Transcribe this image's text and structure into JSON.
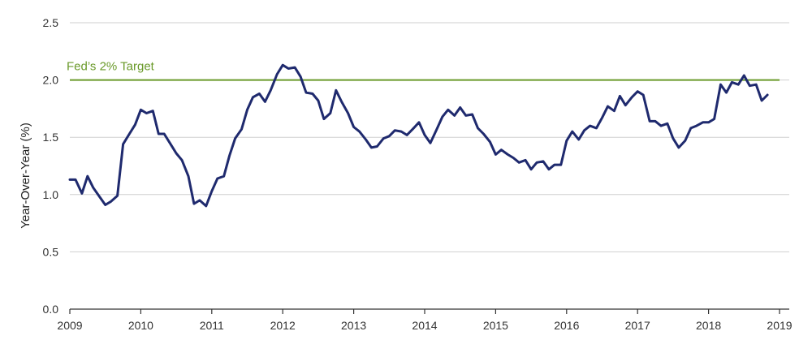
{
  "chart_data": {
    "type": "line",
    "ylabel": "Year-Over-Year (%)",
    "xlabel": "",
    "ylim": [
      0,
      2.5
    ],
    "y_ticks": [
      "0.0",
      "0.5",
      "1.0",
      "1.5",
      "2.0",
      "2.5"
    ],
    "xlim": [
      2009,
      2019
    ],
    "x_ticks": [
      "2009",
      "2010",
      "2011",
      "2012",
      "2013",
      "2014",
      "2015",
      "2016",
      "2017",
      "2018",
      "2019"
    ],
    "grid": "horizontal",
    "reference_line": {
      "label": "Fed’s 2% Target",
      "value": 2.0,
      "color": "#6a9a2a"
    },
    "series": [
      {
        "color": "#1f2a6e",
        "x": [
          2009.0,
          2009.08,
          2009.17,
          2009.25,
          2009.33,
          2009.42,
          2009.5,
          2009.58,
          2009.67,
          2009.75,
          2009.83,
          2009.92,
          2010.0,
          2010.08,
          2010.17,
          2010.25,
          2010.33,
          2010.42,
          2010.5,
          2010.58,
          2010.67,
          2010.75,
          2010.83,
          2010.92,
          2011.0,
          2011.08,
          2011.17,
          2011.25,
          2011.33,
          2011.42,
          2011.5,
          2011.58,
          2011.67,
          2011.75,
          2011.83,
          2011.92,
          2012.0,
          2012.08,
          2012.17,
          2012.25,
          2012.33,
          2012.42,
          2012.5,
          2012.58,
          2012.67,
          2012.75,
          2012.83,
          2012.92,
          2013.0,
          2013.08,
          2013.17,
          2013.25,
          2013.33,
          2013.42,
          2013.5,
          2013.58,
          2013.67,
          2013.75,
          2013.83,
          2013.92,
          2014.0,
          2014.08,
          2014.17,
          2014.25,
          2014.33,
          2014.42,
          2014.5,
          2014.58,
          2014.67,
          2014.75,
          2014.83,
          2014.92,
          2015.0,
          2015.08,
          2015.17,
          2015.25,
          2015.33,
          2015.42,
          2015.5,
          2015.58,
          2015.67,
          2015.75,
          2015.83,
          2015.92,
          2016.0,
          2016.08,
          2016.17,
          2016.25,
          2016.33,
          2016.42,
          2016.5,
          2016.58,
          2016.67,
          2016.75,
          2016.83,
          2016.92,
          2017.0,
          2017.08,
          2017.17,
          2017.25,
          2017.33,
          2017.42,
          2017.5,
          2017.58,
          2017.67,
          2017.75,
          2017.83,
          2017.92,
          2018.0,
          2018.08,
          2018.17,
          2018.25,
          2018.33,
          2018.42,
          2018.5,
          2018.58,
          2018.67,
          2018.75,
          2018.83
        ],
        "y": [
          1.13,
          1.13,
          1.01,
          1.16,
          1.06,
          0.98,
          0.91,
          0.94,
          0.99,
          1.44,
          1.52,
          1.61,
          1.74,
          1.71,
          1.73,
          1.53,
          1.53,
          1.44,
          1.36,
          1.3,
          1.16,
          0.92,
          0.95,
          0.9,
          1.03,
          1.14,
          1.16,
          1.34,
          1.49,
          1.57,
          1.74,
          1.85,
          1.88,
          1.81,
          1.91,
          2.05,
          2.13,
          2.1,
          2.11,
          2.03,
          1.89,
          1.88,
          1.82,
          1.66,
          1.71,
          1.91,
          1.81,
          1.71,
          1.59,
          1.55,
          1.48,
          1.41,
          1.42,
          1.49,
          1.51,
          1.56,
          1.55,
          1.52,
          1.57,
          1.63,
          1.52,
          1.45,
          1.57,
          1.68,
          1.74,
          1.69,
          1.76,
          1.69,
          1.7,
          1.58,
          1.53,
          1.46,
          1.35,
          1.39,
          1.35,
          1.32,
          1.28,
          1.3,
          1.22,
          1.28,
          1.29,
          1.22,
          1.26,
          1.26,
          1.47,
          1.55,
          1.48,
          1.56,
          1.6,
          1.58,
          1.67,
          1.77,
          1.73,
          1.86,
          1.78,
          1.85,
          1.9,
          1.87,
          1.64,
          1.64,
          1.6,
          1.62,
          1.49,
          1.41,
          1.47,
          1.58,
          1.6,
          1.63,
          1.63,
          1.66,
          1.96,
          1.89,
          1.98,
          1.96,
          2.04,
          1.95,
          1.96,
          1.82,
          1.87
        ]
      }
    ]
  }
}
